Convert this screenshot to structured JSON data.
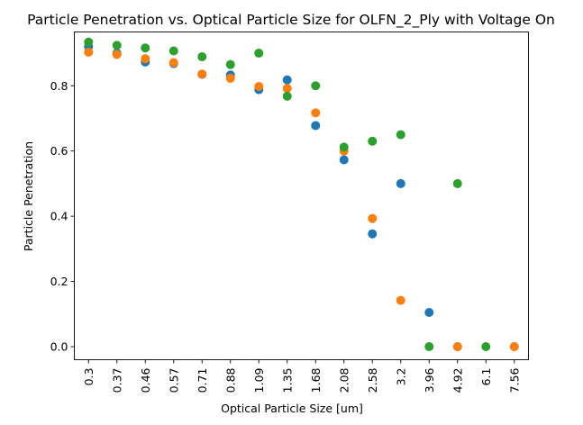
{
  "chart_data": {
    "type": "scatter",
    "title": "Particle Penetration vs. Optical Particle Size for OLFN_2_Ply with Voltage On",
    "xlabel": "Optical Particle Size [um]",
    "ylabel": "Particle Penetration",
    "categories": [
      "0.3",
      "0.37",
      "0.46",
      "0.57",
      "0.71",
      "0.88",
      "1.09",
      "1.35",
      "1.68",
      "2.08",
      "2.58",
      "3.2",
      "3.96",
      "4.92",
      "6.1",
      "7.56"
    ],
    "y_ticks": [
      "0.0",
      "0.2",
      "0.4",
      "0.6",
      "0.8"
    ],
    "ylim": [
      -0.04,
      0.965
    ],
    "grid": false,
    "legend": "none",
    "series": [
      {
        "color": "#1f77b4",
        "values": [
          0.92,
          0.9,
          0.873,
          0.868,
          0.835,
          0.833,
          0.788,
          0.818,
          0.678,
          0.573,
          0.346,
          0.5,
          0.105,
          0.0,
          null,
          0.0
        ]
      },
      {
        "color": "#ff7f0e",
        "values": [
          0.903,
          0.896,
          0.883,
          0.871,
          0.836,
          0.823,
          0.798,
          0.792,
          0.717,
          0.6,
          0.393,
          0.142,
          null,
          0.0,
          null,
          0.0
        ]
      },
      {
        "color": "#2ca02c",
        "values": [
          0.934,
          0.924,
          0.916,
          0.907,
          0.889,
          0.865,
          0.9,
          0.768,
          0.8,
          0.612,
          0.63,
          0.65,
          0.0,
          0.5,
          0.0,
          null
        ]
      }
    ]
  }
}
